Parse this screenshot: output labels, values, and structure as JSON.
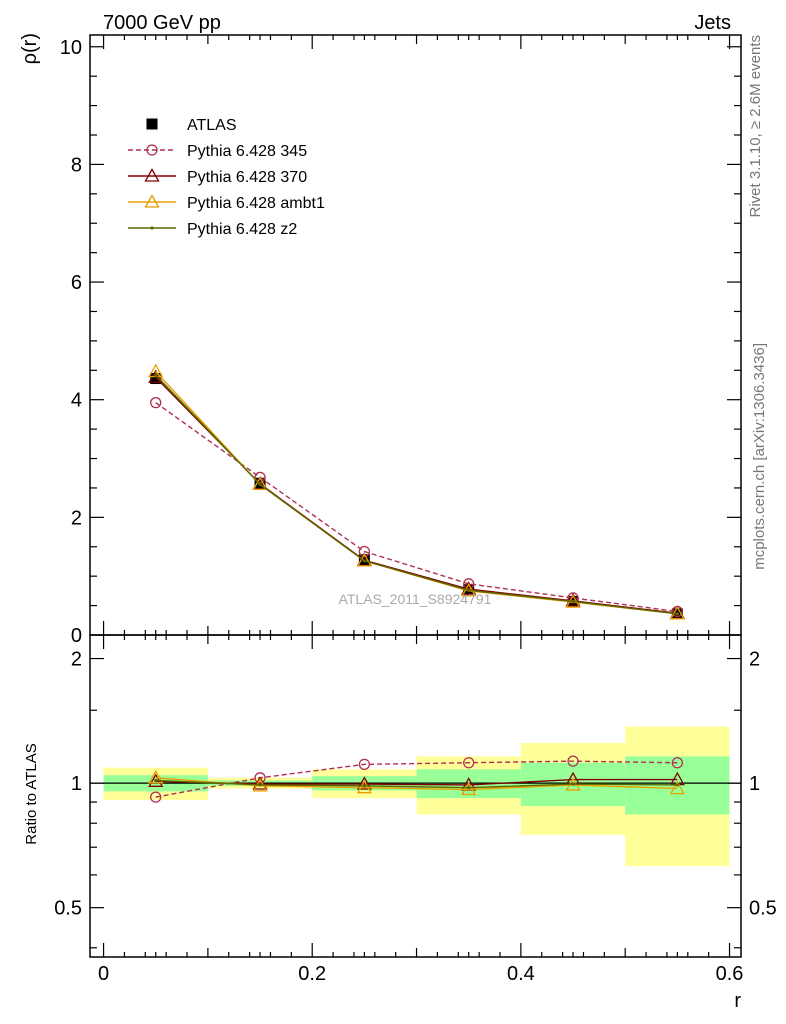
{
  "header": {
    "left": "7000 GeV pp",
    "right": "Jets"
  },
  "side_text": {
    "rivet": "Rivet 3.1.10, ≥ 2.6M events",
    "mcplots": "mcplots.cern.ch [arXiv:1306.3436]"
  },
  "analysis_label": "ATLAS_2011_S8924791",
  "chart_data": [
    {
      "type": "line",
      "panel": "main",
      "ylabel": "ρ(r)",
      "xlim": [
        -0.013,
        0.611
      ],
      "ylim": [
        0,
        10.2
      ],
      "x_ticks": [
        0,
        0.2,
        0.4,
        0.6
      ],
      "y_ticks": [
        0,
        2,
        4,
        6,
        8,
        10
      ],
      "y_tick_labels": [
        "0",
        "2",
        "4",
        "6",
        "8",
        "10"
      ],
      "legend_position": "top-left",
      "x": [
        0.05,
        0.15,
        0.25,
        0.35,
        0.45,
        0.55
      ],
      "series": [
        {
          "name": "ATLAS",
          "values": [
            4.36,
            2.58,
            1.28,
            0.77,
            0.57,
            0.36
          ],
          "color": "#000000",
          "marker": "square",
          "style": "data"
        },
        {
          "name": "Pythia 6.428 345",
          "values": [
            3.95,
            2.68,
            1.42,
            0.87,
            0.63,
            0.4
          ],
          "color": "#b03050",
          "marker": "circle",
          "style": "dashed"
        },
        {
          "name": "Pythia 6.428 370",
          "values": [
            4.38,
            2.57,
            1.27,
            0.78,
            0.58,
            0.37
          ],
          "color": "#800000",
          "marker": "triangle",
          "style": "solid"
        },
        {
          "name": "Pythia 6.428 ambt1",
          "values": [
            4.48,
            2.56,
            1.26,
            0.75,
            0.56,
            0.36
          ],
          "color": "#e8a000",
          "marker": "triangle",
          "style": "solid"
        },
        {
          "name": "Pythia 6.428 z2",
          "values": [
            4.42,
            2.56,
            1.26,
            0.76,
            0.57,
            0.36
          ],
          "color": "#5a6a00",
          "marker": "dot",
          "style": "solid"
        }
      ]
    },
    {
      "type": "line",
      "panel": "ratio",
      "xlabel": "r",
      "ylabel": "Ratio to ATLAS",
      "xlim": [
        -0.013,
        0.611
      ],
      "ylim": [
        0.38,
        2.28
      ],
      "y_scale": "log",
      "x_ticks": [
        0,
        0.2,
        0.4,
        0.6
      ],
      "x_tick_labels": [
        "0",
        "0.2",
        "0.4",
        "0.6"
      ],
      "y_ticks": [
        0.5,
        1,
        2
      ],
      "y_tick_labels": [
        "0.5",
        "1",
        "2"
      ],
      "x": [
        0.05,
        0.15,
        0.25,
        0.35,
        0.45,
        0.55
      ],
      "bands": [
        {
          "x0": 0.0,
          "x1": 0.1,
          "yellow": [
            0.91,
            1.09
          ],
          "green": [
            0.955,
            1.045
          ]
        },
        {
          "x0": 0.1,
          "x1": 0.2,
          "yellow": [
            0.97,
            1.03
          ],
          "green": [
            0.985,
            1.015
          ]
        },
        {
          "x0": 0.2,
          "x1": 0.3,
          "yellow": [
            0.92,
            1.08
          ],
          "green": [
            0.96,
            1.04
          ]
        },
        {
          "x0": 0.3,
          "x1": 0.4,
          "yellow": [
            0.84,
            1.16
          ],
          "green": [
            0.92,
            1.08
          ]
        },
        {
          "x0": 0.4,
          "x1": 0.5,
          "yellow": [
            0.75,
            1.25
          ],
          "green": [
            0.88,
            1.12
          ]
        },
        {
          "x0": 0.5,
          "x1": 0.6,
          "yellow": [
            0.63,
            1.37
          ],
          "green": [
            0.84,
            1.16
          ]
        }
      ],
      "series": [
        {
          "name": "Pythia 6.428 345",
          "values": [
            0.925,
            1.03,
            1.11,
            1.12,
            1.13,
            1.12
          ],
          "color": "#b03050",
          "marker": "circle",
          "style": "dashed"
        },
        {
          "name": "Pythia 6.428 370",
          "values": [
            1.01,
            0.995,
            0.995,
            0.99,
            1.02,
            1.02
          ],
          "color": "#800000",
          "marker": "triangle",
          "style": "solid"
        },
        {
          "name": "Pythia 6.428 ambt1",
          "values": [
            1.03,
            0.985,
            0.975,
            0.965,
            0.99,
            0.97
          ],
          "color": "#e8a000",
          "marker": "triangle",
          "style": "solid"
        },
        {
          "name": "Pythia 6.428 z2",
          "values": [
            1.015,
            0.99,
            0.985,
            0.975,
            0.995,
            0.99
          ],
          "color": "#5a6a00",
          "marker": "dot",
          "style": "solid"
        }
      ]
    }
  ]
}
